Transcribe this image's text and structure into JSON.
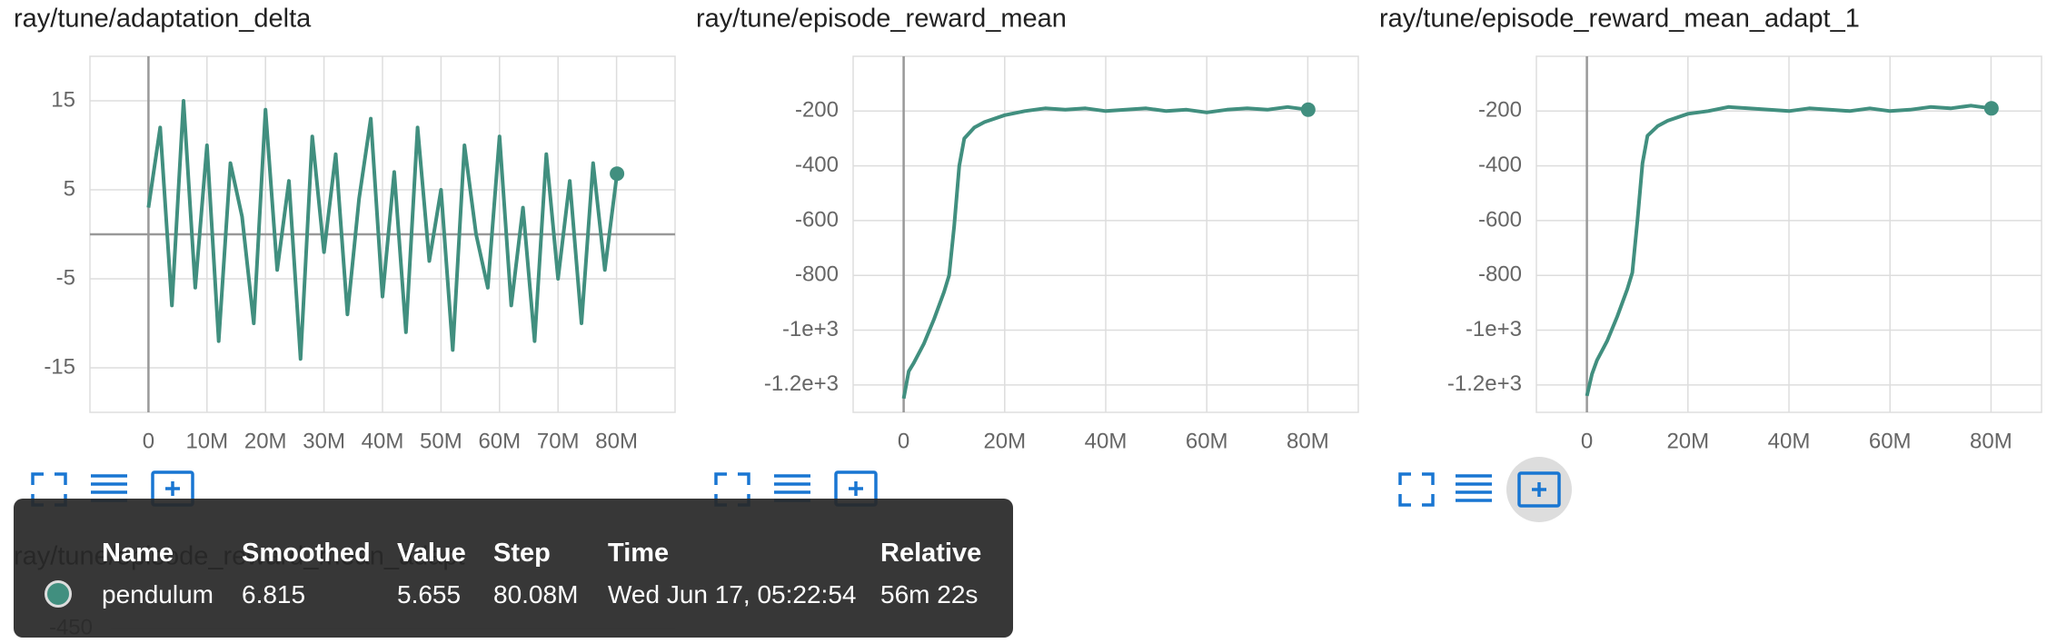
{
  "chart_data": [
    {
      "type": "line",
      "title": "ray/tune/adaptation_delta",
      "xlim": [
        -10000000,
        90000000
      ],
      "xticks": [
        {
          "value": 0,
          "label": "0"
        },
        {
          "value": 10000000,
          "label": "10M"
        },
        {
          "value": 20000000,
          "label": "20M"
        },
        {
          "value": 30000000,
          "label": "30M"
        },
        {
          "value": 40000000,
          "label": "40M"
        },
        {
          "value": 50000000,
          "label": "50M"
        },
        {
          "value": 60000000,
          "label": "60M"
        },
        {
          "value": 70000000,
          "label": "70M"
        },
        {
          "value": 80000000,
          "label": "80M"
        }
      ],
      "ylim": [
        -20,
        20
      ],
      "yticks": [
        -15,
        -5,
        5,
        15
      ],
      "grid": true,
      "x": [
        0,
        2000000,
        4000000,
        6000000,
        8000000,
        10000000,
        12000000,
        14000000,
        16000000,
        18000000,
        20000000,
        22000000,
        24000000,
        26000000,
        28000000,
        30000000,
        32000000,
        34000000,
        36000000,
        38000000,
        40000000,
        42000000,
        44000000,
        46000000,
        48000000,
        50000000,
        52000000,
        54000000,
        56000000,
        58000000,
        60000000,
        62000000,
        64000000,
        66000000,
        68000000,
        70000000,
        72000000,
        74000000,
        76000000,
        78000000,
        80080000
      ],
      "series": [
        {
          "name": "pendulum",
          "color": "#418f7f",
          "values": [
            3,
            12,
            -8,
            15,
            -6,
            10,
            -12,
            8,
            2,
            -10,
            14,
            -4,
            6,
            -14,
            11,
            -2,
            9,
            -9,
            4,
            13,
            -7,
            7,
            -11,
            12,
            -3,
            5,
            -13,
            10,
            0,
            -6,
            11,
            -8,
            3,
            -12,
            9,
            -5,
            6,
            -10,
            8,
            -4,
            6.815
          ]
        }
      ]
    },
    {
      "type": "line",
      "title": "ray/tune/episode_reward_mean",
      "xlim": [
        -10000000,
        90000000
      ],
      "xticks": [
        {
          "value": 0,
          "label": "0"
        },
        {
          "value": 20000000,
          "label": "20M"
        },
        {
          "value": 40000000,
          "label": "40M"
        },
        {
          "value": 60000000,
          "label": "60M"
        },
        {
          "value": 80000000,
          "label": "80M"
        }
      ],
      "ylim": [
        -1300,
        0
      ],
      "yticks": [
        {
          "value": -1200,
          "label": "-1.2e+3"
        },
        {
          "value": -1000,
          "label": "-1e+3"
        },
        -800,
        -600,
        -400,
        -200
      ],
      "grid": true,
      "x": [
        0,
        1000000,
        2000000,
        4000000,
        6000000,
        8000000,
        9000000,
        10000000,
        11000000,
        12000000,
        14000000,
        16000000,
        20000000,
        24000000,
        28000000,
        32000000,
        36000000,
        40000000,
        44000000,
        48000000,
        52000000,
        56000000,
        60000000,
        64000000,
        68000000,
        72000000,
        76000000,
        80080000
      ],
      "series": [
        {
          "name": "pendulum",
          "color": "#418f7f",
          "values": [
            -1250,
            -1150,
            -1120,
            -1050,
            -960,
            -860,
            -800,
            -620,
            -400,
            -300,
            -260,
            -240,
            -215,
            -200,
            -190,
            -195,
            -190,
            -200,
            -195,
            -190,
            -200,
            -195,
            -205,
            -195,
            -190,
            -195,
            -185,
            -195
          ]
        }
      ]
    },
    {
      "type": "line",
      "title": "ray/tune/episode_reward_mean_adapt_1",
      "xlim": [
        -10000000,
        90000000
      ],
      "xticks": [
        {
          "value": 0,
          "label": "0"
        },
        {
          "value": 20000000,
          "label": "20M"
        },
        {
          "value": 40000000,
          "label": "40M"
        },
        {
          "value": 60000000,
          "label": "60M"
        },
        {
          "value": 80000000,
          "label": "80M"
        }
      ],
      "ylim": [
        -1300,
        0
      ],
      "yticks": [
        {
          "value": -1200,
          "label": "-1.2e+3"
        },
        {
          "value": -1000,
          "label": "-1e+3"
        },
        -800,
        -600,
        -400,
        -200
      ],
      "grid": true,
      "x": [
        0,
        1000000,
        2000000,
        4000000,
        6000000,
        8000000,
        9000000,
        10000000,
        11000000,
        12000000,
        14000000,
        16000000,
        20000000,
        24000000,
        28000000,
        32000000,
        36000000,
        40000000,
        44000000,
        48000000,
        52000000,
        56000000,
        60000000,
        64000000,
        68000000,
        72000000,
        76000000,
        80080000
      ],
      "series": [
        {
          "name": "pendulum",
          "color": "#418f7f",
          "values": [
            -1240,
            -1160,
            -1110,
            -1040,
            -950,
            -850,
            -790,
            -600,
            -390,
            -290,
            -255,
            -235,
            -210,
            -200,
            -185,
            -190,
            -195,
            -200,
            -190,
            -195,
            -200,
            -190,
            -200,
            -195,
            -185,
            -190,
            -180,
            -190
          ]
        }
      ]
    },
    {
      "type": "line",
      "title": "ray/tune/episode_reward_mean_adapt",
      "yticks": [
        -450
      ]
    }
  ],
  "tooltip": {
    "columns": [
      "Name",
      "Smoothed",
      "Value",
      "Step",
      "Time",
      "Relative"
    ],
    "rows": [
      [
        "pendulum",
        "6.815",
        "5.655",
        "80.08M",
        "Wed Jun 17, 05:22:54",
        "56m 22s"
      ]
    ]
  }
}
